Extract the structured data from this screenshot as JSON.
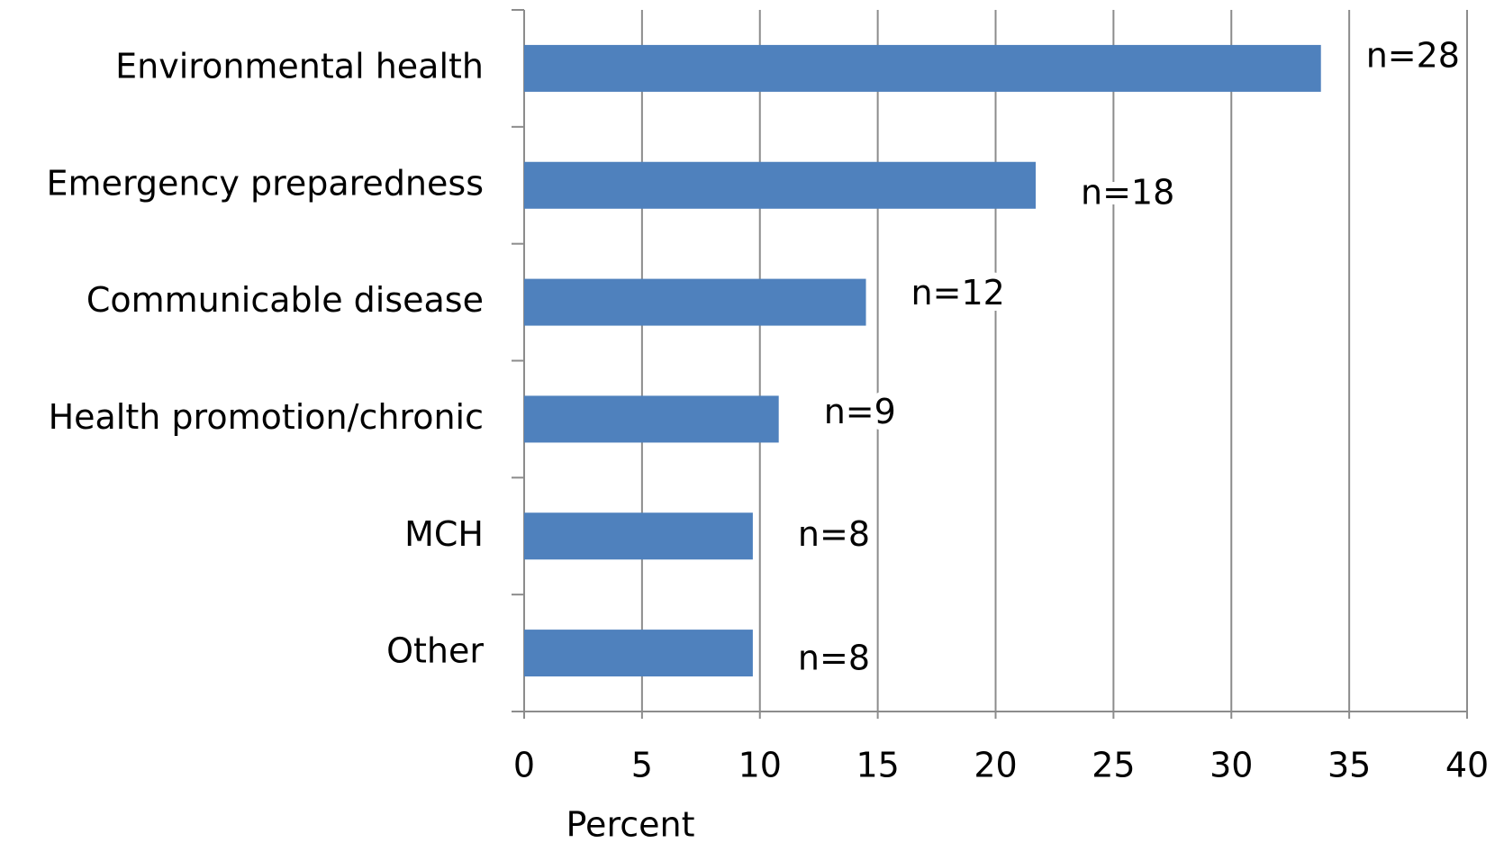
{
  "chart_data": {
    "type": "bar",
    "orientation": "horizontal",
    "x_axis_label": "Percent",
    "categories": [
      "Environmental health",
      "Emergency preparedness",
      "Communicable disease",
      "Health promotion/chronic",
      "MCH",
      "Other"
    ],
    "values": [
      33.8,
      21.7,
      14.5,
      10.8,
      9.7,
      9.7
    ],
    "annotations": [
      "n=28",
      "n=18",
      "n=12",
      "n=9",
      "n=8",
      "n=8"
    ],
    "color": "#4f81bd",
    "xlim": [
      0,
      40
    ],
    "xticks": [
      0,
      5,
      10,
      15,
      20,
      25,
      30,
      35,
      40
    ],
    "grid": true
  }
}
